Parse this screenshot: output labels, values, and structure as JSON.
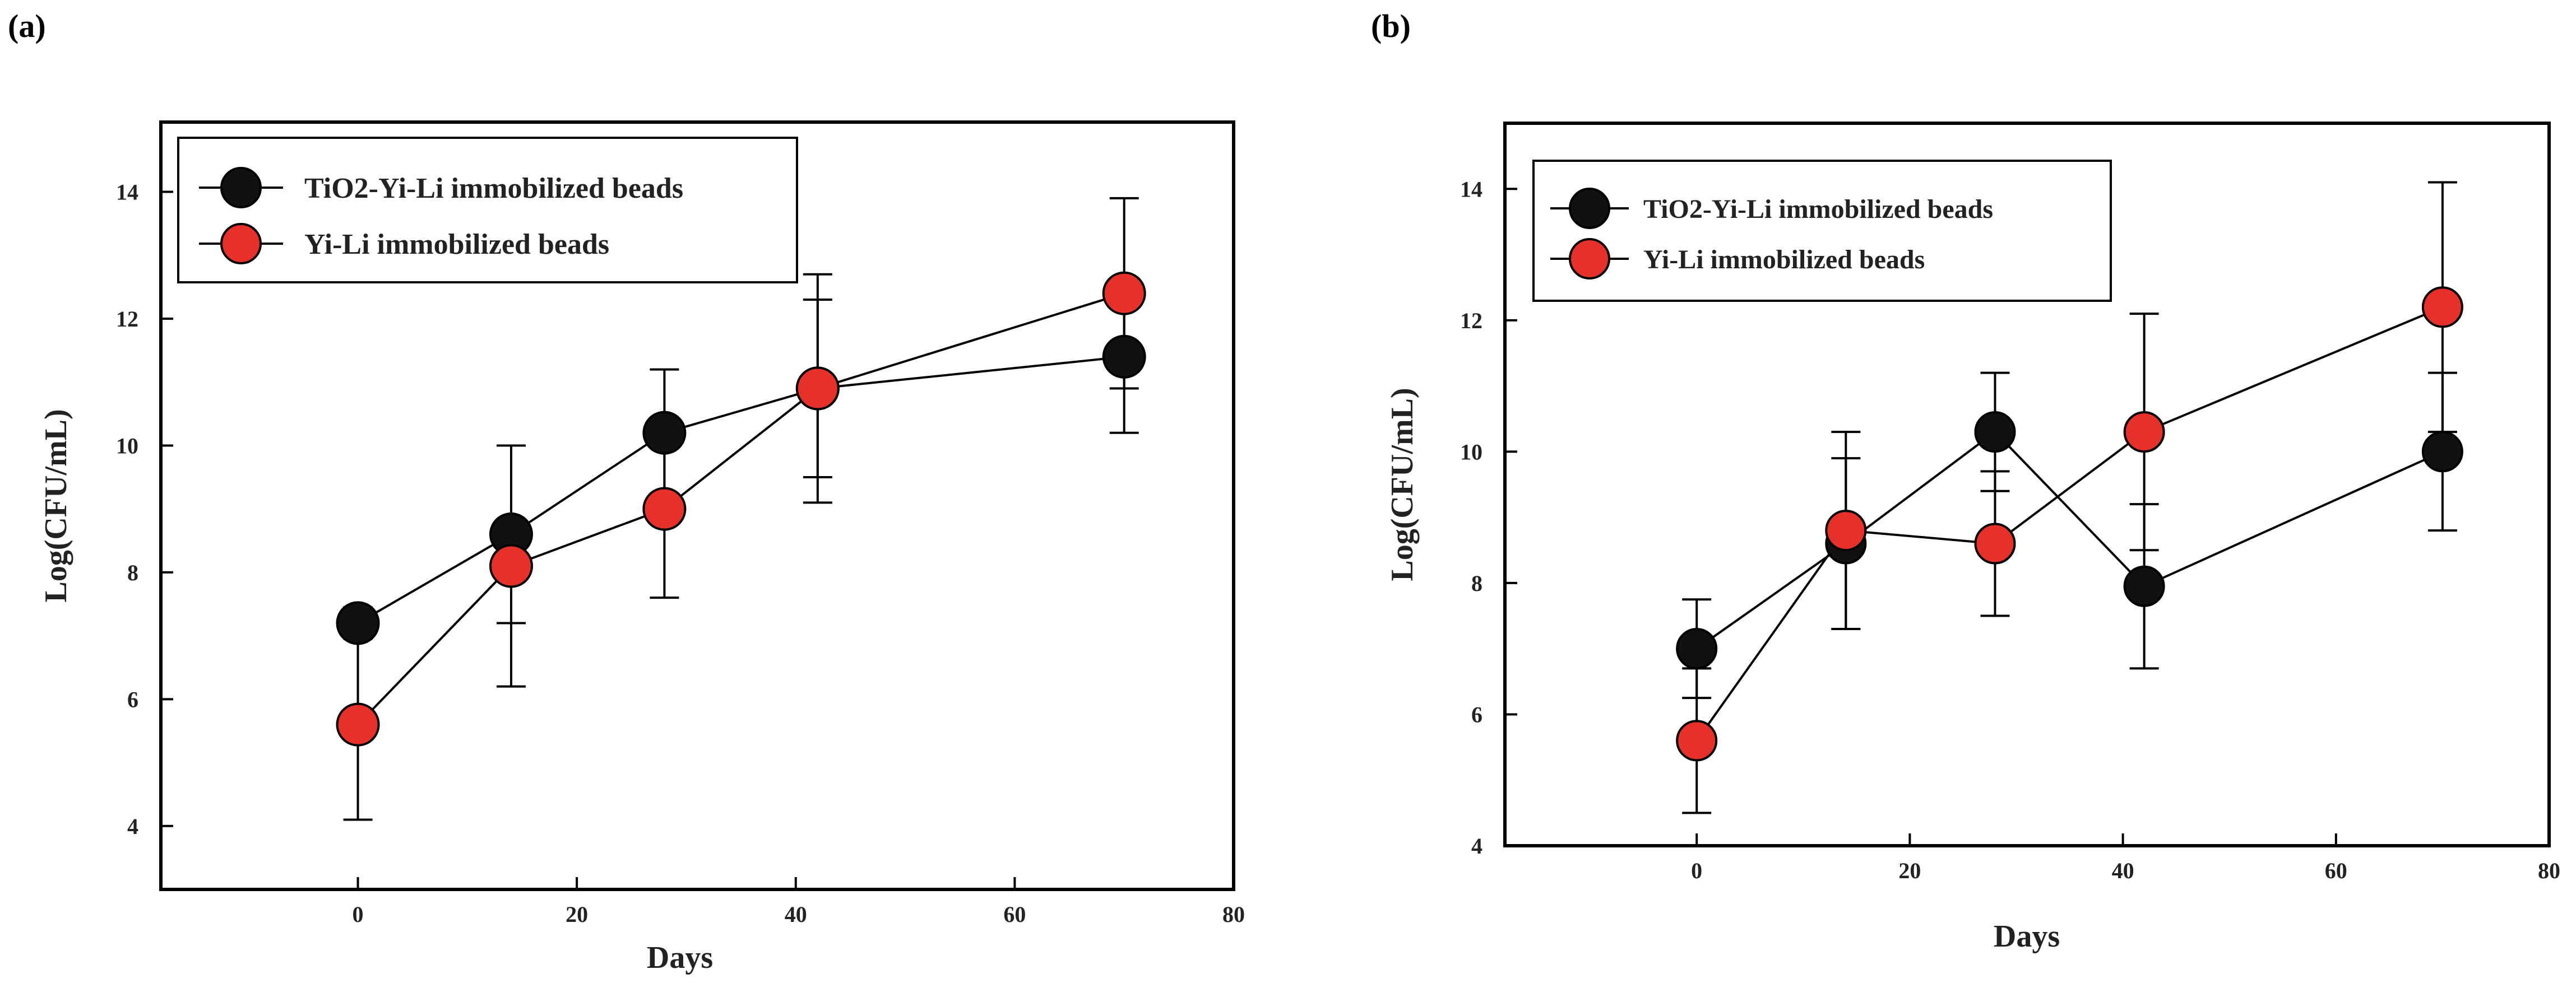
{
  "chart_data": [
    {
      "panel_label": "(a)",
      "type": "line",
      "title": "",
      "xlabel": "Days",
      "ylabel": "Log(CFU/mL)",
      "xlim": [
        -18,
        80
      ],
      "ylim": [
        3.0,
        15.1
      ],
      "xticks": [
        0,
        20,
        40,
        60,
        80
      ],
      "yticks": [
        4,
        6,
        8,
        10,
        12,
        14
      ],
      "legend_position": "top-left",
      "series": [
        {
          "name": "TiO2-Yi-Li immobilized beads",
          "color": "#111111",
          "x": [
            0,
            14,
            28,
            42,
            70
          ],
          "y": [
            7.2,
            8.6,
            10.2,
            10.9,
            11.4
          ],
          "err": [
            0.25,
            1.4,
            1.0,
            1.4,
            1.2
          ]
        },
        {
          "name": "Yi-Li immobilized beads",
          "color": "#e8302a",
          "x": [
            0,
            14,
            28,
            42,
            70
          ],
          "y": [
            5.6,
            8.1,
            9.0,
            10.9,
            12.4
          ],
          "err": [
            1.5,
            1.9,
            1.4,
            1.8,
            1.5
          ]
        }
      ]
    },
    {
      "panel_label": "(b)",
      "type": "line",
      "title": "",
      "xlabel": "Days",
      "ylabel": "Log(CFU/mL)",
      "xlim": [
        -18,
        80
      ],
      "ylim": [
        4,
        15
      ],
      "xticks": [
        0,
        20,
        40,
        60,
        80
      ],
      "yticks": [
        4,
        6,
        8,
        10,
        12,
        14
      ],
      "legend_position": "top-left",
      "series": [
        {
          "name": "TiO2-Yi-Li immobilized beads",
          "color": "#111111",
          "x": [
            0,
            14,
            28,
            42,
            70
          ],
          "y": [
            7.0,
            8.6,
            10.3,
            7.95,
            10.0
          ],
          "err": [
            0.75,
            1.3,
            0.9,
            1.25,
            1.2
          ]
        },
        {
          "name": "Yi-Li immobilized beads",
          "color": "#e8302a",
          "x": [
            0,
            14,
            28,
            42,
            70
          ],
          "y": [
            5.6,
            8.8,
            8.6,
            10.3,
            12.2
          ],
          "err": [
            1.1,
            1.5,
            1.1,
            1.8,
            1.9
          ]
        }
      ]
    }
  ]
}
